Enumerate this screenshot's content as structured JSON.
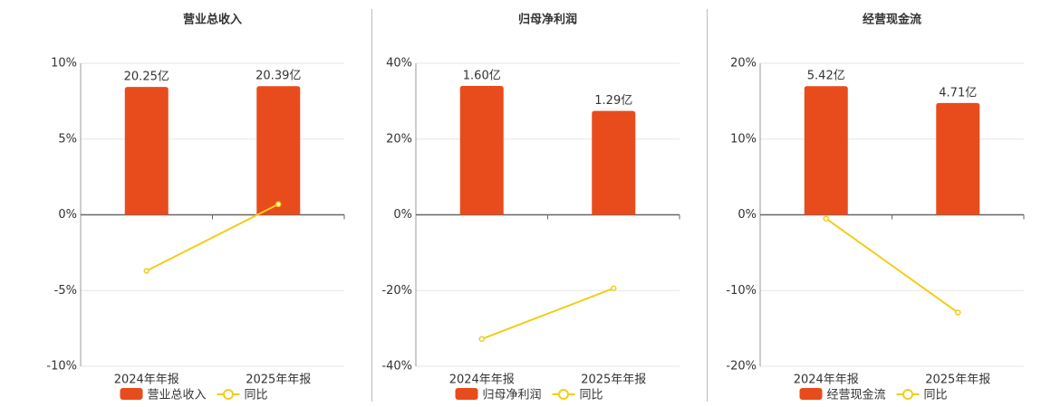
{
  "chart_data": [
    {
      "type": "combo",
      "title": "营业总收入",
      "categories": [
        "2024年年报",
        "2025年年报"
      ],
      "series": [
        {
          "name": "营业总收入",
          "type": "bar",
          "axis": "y2",
          "color": "#e84c1c",
          "values": [
            20.25,
            20.39
          ],
          "value_labels": [
            "20.25亿",
            "20.39亿"
          ]
        },
        {
          "name": "同比",
          "type": "line",
          "color": "#f2cd1a",
          "values": [
            -3.7,
            0.7
          ]
        }
      ],
      "ylim": [
        -10,
        10
      ],
      "yticks": [
        {
          "value": -10,
          "label": "-10%"
        },
        {
          "value": -5,
          "label": "-5%"
        },
        {
          "value": 0,
          "label": "0%"
        },
        {
          "value": 5,
          "label": "5%"
        },
        {
          "value": 10,
          "label": "10%"
        }
      ],
      "y2lim": [
        -24,
        24
      ],
      "grid": true
    },
    {
      "type": "combo",
      "title": "归母净利润",
      "categories": [
        "2024年年报",
        "2025年年报"
      ],
      "series": [
        {
          "name": "归母净利润",
          "type": "bar",
          "axis": "y2",
          "color": "#e84c1c",
          "values": [
            1.6,
            1.29
          ],
          "value_labels": [
            "1.60亿",
            "1.29亿"
          ]
        },
        {
          "name": "同比",
          "type": "line",
          "color": "#f2cd1a",
          "values": [
            -32.8,
            -19.4
          ]
        }
      ],
      "ylim": [
        -40,
        40
      ],
      "yticks": [
        {
          "value": -40,
          "label": "-40%"
        },
        {
          "value": -20,
          "label": "-20%"
        },
        {
          "value": 0,
          "label": "0%"
        },
        {
          "value": 20,
          "label": "20%"
        },
        {
          "value": 40,
          "label": "40%"
        }
      ],
      "y2lim": [
        -1.88,
        1.88
      ],
      "grid": true
    },
    {
      "type": "combo",
      "title": "经营现金流",
      "categories": [
        "2024年年报",
        "2025年年报"
      ],
      "series": [
        {
          "name": "经营现金流",
          "type": "bar",
          "axis": "y2",
          "color": "#e84c1c",
          "values": [
            5.42,
            4.71
          ],
          "value_labels": [
            "5.42亿",
            "4.71亿"
          ]
        },
        {
          "name": "同比",
          "type": "line",
          "color": "#f2cd1a",
          "values": [
            -0.5,
            -12.9
          ]
        }
      ],
      "ylim": [
        -20,
        20
      ],
      "yticks": [
        {
          "value": -20,
          "label": "-20%"
        },
        {
          "value": -10,
          "label": "-10%"
        },
        {
          "value": 0,
          "label": "0%"
        },
        {
          "value": 10,
          "label": "10%"
        },
        {
          "value": 20,
          "label": "20%"
        }
      ],
      "y2lim": [
        -6.38,
        6.38
      ],
      "grid": true
    }
  ]
}
